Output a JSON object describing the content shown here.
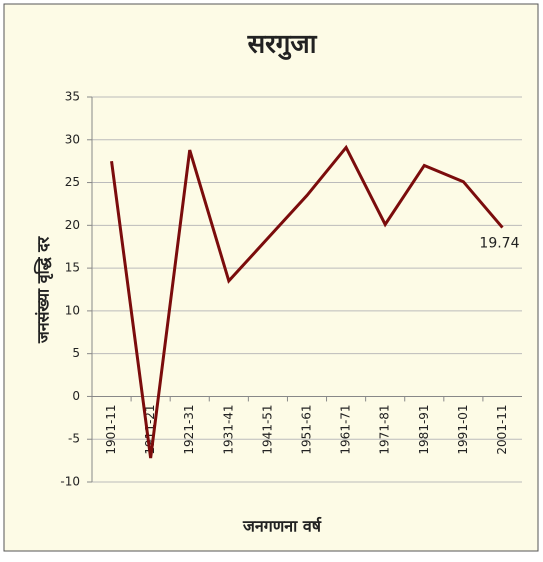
{
  "chart_data": {
    "type": "line",
    "title": "सरगुजा",
    "y_label": "जनसंख्या वृद्धि दर",
    "x_label": "जनगणना वर्ष",
    "categories": [
      "1901-11",
      "1911-21",
      "1921-31",
      "1931-41",
      "1941-51",
      "1951-61",
      "1961-71",
      "1971-81",
      "1981-91",
      "1991-01",
      "2001-11"
    ],
    "values": [
      27.5,
      -7.2,
      28.8,
      13.5,
      18.5,
      23.5,
      29.1,
      20.1,
      27.0,
      25.1,
      19.74
    ],
    "value_labels": [
      null,
      null,
      null,
      null,
      null,
      null,
      null,
      null,
      null,
      null,
      "19.74"
    ],
    "color": "#7b0c0c",
    "ylim": [
      -10,
      35
    ],
    "yticks": [
      -10,
      -5,
      0,
      5,
      10,
      15,
      20,
      25,
      30,
      35
    ],
    "grid": true
  }
}
